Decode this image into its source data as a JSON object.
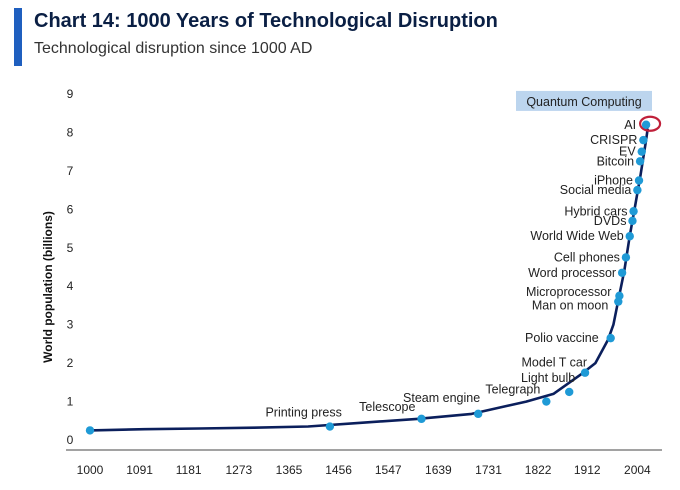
{
  "header": {
    "title": "Chart 14: 1000 Years of Technological Disruption",
    "subtitle": "Technological disruption since 1000 AD"
  },
  "colors": {
    "accent": "#1f5fbf",
    "line": "#0b1f5c",
    "marker": "#1f9ad6",
    "highlight_box": "#bcd5ee",
    "highlight_ring": "#c0203a"
  },
  "chart_data": {
    "type": "line",
    "title": "Chart 14: 1000 Years of Technological Disruption",
    "subtitle": "Technological disruption since 1000 AD",
    "xlabel": "",
    "ylabel": "World population (billions)",
    "xlim": [
      1000,
      2040
    ],
    "ylim": [
      0,
      9
    ],
    "xticks": [
      1000,
      1091,
      1181,
      1273,
      1365,
      1456,
      1547,
      1639,
      1731,
      1822,
      1912,
      2004
    ],
    "yticks": [
      0,
      1,
      2,
      3,
      4,
      5,
      6,
      7,
      8,
      9
    ],
    "grid": false,
    "series": [
      {
        "name": "World population",
        "x": [
          1000,
          1100,
          1200,
          1300,
          1400,
          1500,
          1600,
          1700,
          1800,
          1850,
          1900,
          1927,
          1950,
          1960,
          1970,
          1980,
          1990,
          2000,
          2010,
          2020,
          2023
        ],
        "y": [
          0.25,
          0.28,
          0.3,
          0.32,
          0.35,
          0.45,
          0.55,
          0.68,
          1.0,
          1.2,
          1.7,
          2.0,
          2.6,
          3.0,
          3.7,
          4.4,
          5.3,
          6.1,
          6.9,
          7.8,
          8.1
        ]
      }
    ],
    "points": [
      {
        "label": "",
        "x": 1000,
        "y": 0.25
      },
      {
        "label": "Printing press",
        "x": 1440,
        "y": 0.35
      },
      {
        "label": "Telescope",
        "x": 1608,
        "y": 0.55
      },
      {
        "label": "Steam engine",
        "x": 1712,
        "y": 0.68
      },
      {
        "label": "Telegraph",
        "x": 1837,
        "y": 1.0
      },
      {
        "label": "Light bulb",
        "x": 1879,
        "y": 1.25
      },
      {
        "label": "Model T car",
        "x": 1908,
        "y": 1.75
      },
      {
        "label": "Polio vaccine",
        "x": 1955,
        "y": 2.65
      },
      {
        "label": "Man on moon",
        "x": 1969,
        "y": 3.6
      },
      {
        "label": "Microprocessor",
        "x": 1971,
        "y": 3.75
      },
      {
        "label": "Word processor",
        "x": 1976,
        "y": 4.35
      },
      {
        "label": "Cell phones",
        "x": 1983,
        "y": 4.75
      },
      {
        "label": "World Wide Web",
        "x": 1990,
        "y": 5.3
      },
      {
        "label": "DVDs",
        "x": 1995,
        "y": 5.7
      },
      {
        "label": "Hybrid cars",
        "x": 1997,
        "y": 5.95
      },
      {
        "label": "Social media",
        "x": 2004,
        "y": 6.5
      },
      {
        "label": "iPhone",
        "x": 2007,
        "y": 6.75
      },
      {
        "label": "Bitcoin",
        "x": 2009,
        "y": 7.25
      },
      {
        "label": "EV",
        "x": 2012,
        "y": 7.5
      },
      {
        "label": "CRISPR",
        "x": 2015,
        "y": 7.8
      },
      {
        "label": "AI",
        "x": 2020,
        "y": 8.2
      },
      {
        "label": "Quantum Computing",
        "x": 2023,
        "y": 8.3
      }
    ]
  }
}
